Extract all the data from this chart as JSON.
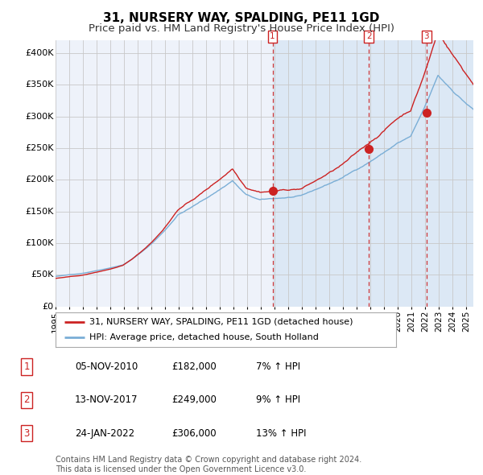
{
  "title": "31, NURSERY WAY, SPALDING, PE11 1GD",
  "subtitle": "Price paid vs. HM Land Registry's House Price Index (HPI)",
  "xlim_start": 1995.0,
  "xlim_end": 2025.5,
  "ylim": [
    0,
    420000
  ],
  "yticks": [
    0,
    50000,
    100000,
    150000,
    200000,
    250000,
    300000,
    350000,
    400000
  ],
  "ytick_labels": [
    "£0",
    "£50K",
    "£100K",
    "£150K",
    "£200K",
    "£250K",
    "£300K",
    "£350K",
    "£400K"
  ],
  "sale_dates": [
    2010.84,
    2017.87,
    2022.07
  ],
  "sale_prices": [
    182000,
    249000,
    306000
  ],
  "sale_labels": [
    "1",
    "2",
    "3"
  ],
  "sale_date_strs": [
    "05-NOV-2010",
    "13-NOV-2017",
    "24-JAN-2022"
  ],
  "sale_price_strs": [
    "£182,000",
    "£249,000",
    "£306,000"
  ],
  "sale_hpi_strs": [
    "7% ↑ HPI",
    "9% ↑ HPI",
    "13% ↑ HPI"
  ],
  "hpi_line_color": "#7aaed6",
  "price_line_color": "#cc2222",
  "marker_color": "#cc2222",
  "dashed_line_color": "#cc2222",
  "shaded_color": "#dce8f5",
  "background_color": "#eef2fa",
  "grid_color": "#c8c8c8",
  "legend_line1": "31, NURSERY WAY, SPALDING, PE11 1GD (detached house)",
  "legend_line2": "HPI: Average price, detached house, South Holland",
  "footer_line1": "Contains HM Land Registry data © Crown copyright and database right 2024.",
  "footer_line2": "This data is licensed under the Open Government Licence v3.0.",
  "title_fontsize": 11,
  "subtitle_fontsize": 9.5,
  "tick_fontsize": 8,
  "legend_fontsize": 8,
  "table_fontsize": 8.5,
  "footer_fontsize": 7
}
